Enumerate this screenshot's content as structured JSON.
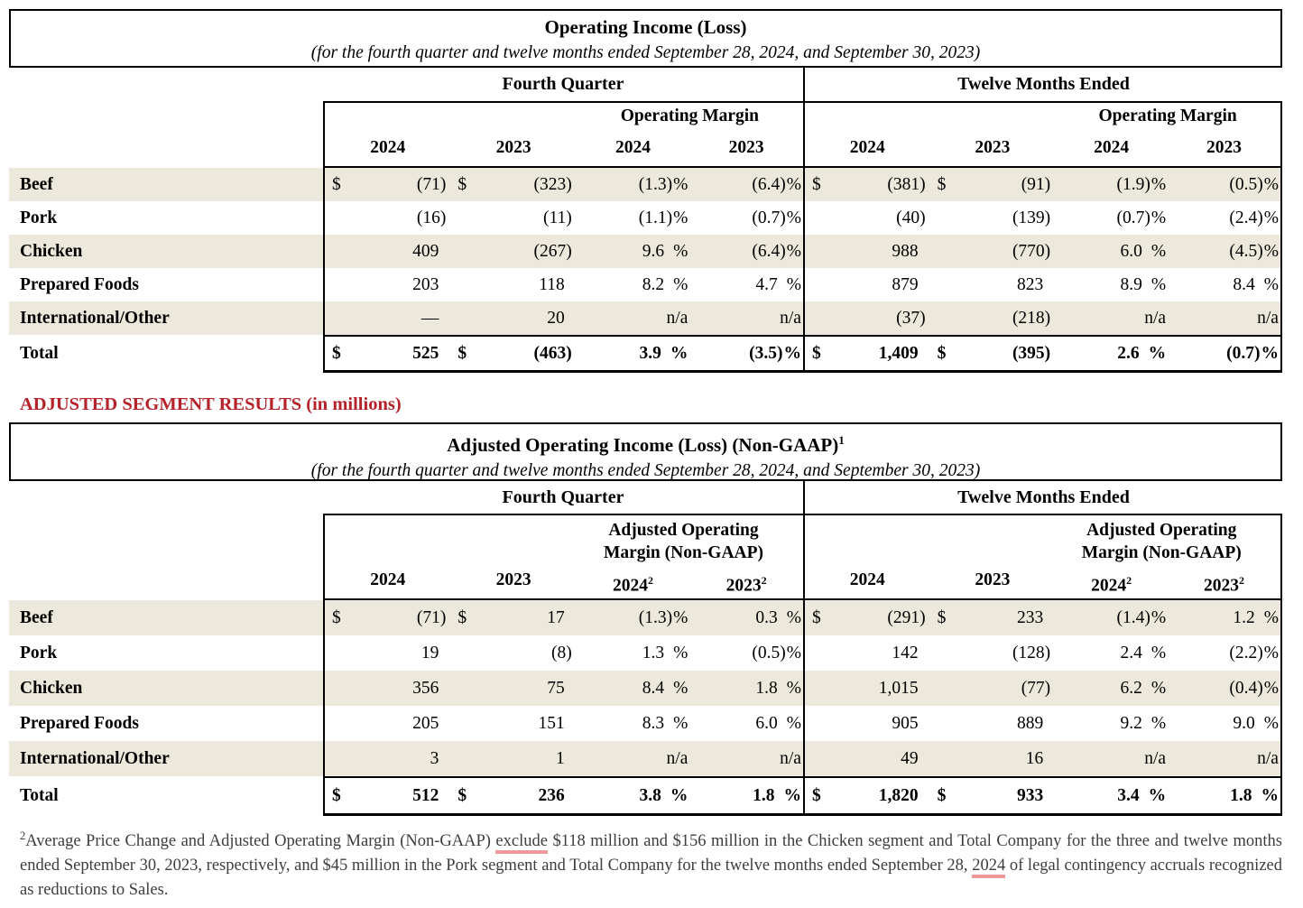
{
  "colors": {
    "stripe": "#ece8db",
    "heading_red": "#b5222a",
    "footnote_gray": "#3d3d3d",
    "underline_pink": "#ef9a9a"
  },
  "table1": {
    "title": "Operating Income (Loss)",
    "subtitle": "(for the fourth quarter and twelve months ended September 28, 2024, and September 30, 2023)",
    "period_left": "Fourth Quarter",
    "period_right": "Twelve Months Ended",
    "margin_header_left": [
      "Operating Margin"
    ],
    "margin_header_right": [
      "Operating Margin"
    ],
    "years_left": [
      {
        "y": "2024"
      },
      {
        "y": "2023"
      },
      {
        "y": "2024"
      },
      {
        "y": "2023"
      }
    ],
    "years_right": [
      {
        "y": "2024"
      },
      {
        "y": "2023"
      },
      {
        "y": "2024"
      },
      {
        "y": "2023"
      }
    ],
    "rows": [
      {
        "label": "Beef",
        "stripe": true,
        "cells": [
          {
            "d": "$",
            "v": "(71)"
          },
          {
            "d": "$",
            "v": "(323)"
          },
          {
            "v": "(1.3)",
            "p": true
          },
          {
            "v": "(6.4)",
            "p": true
          },
          {
            "d": "$",
            "v": "(381)"
          },
          {
            "d": "$",
            "v": "(91)"
          },
          {
            "v": "(1.9)",
            "p": true
          },
          {
            "v": "(0.5)",
            "p": true
          }
        ]
      },
      {
        "label": "Pork",
        "cells": [
          {
            "v": "(16)"
          },
          {
            "v": "(11)"
          },
          {
            "v": "(1.1)",
            "p": true
          },
          {
            "v": "(0.7)",
            "p": true
          },
          {
            "v": "(40)"
          },
          {
            "v": "(139)"
          },
          {
            "v": "(0.7)",
            "p": true
          },
          {
            "v": "(2.4)",
            "p": true
          }
        ]
      },
      {
        "label": "Chicken",
        "stripe": true,
        "cells": [
          {
            "v": "409"
          },
          {
            "v": "(267)"
          },
          {
            "v": "9.6",
            "p": true
          },
          {
            "v": "(6.4)",
            "p": true
          },
          {
            "v": "988"
          },
          {
            "v": "(770)"
          },
          {
            "v": "6.0",
            "p": true
          },
          {
            "v": "(4.5)",
            "p": true
          }
        ]
      },
      {
        "label": "Prepared Foods",
        "cells": [
          {
            "v": "203"
          },
          {
            "v": "118"
          },
          {
            "v": "8.2",
            "p": true
          },
          {
            "v": "4.7",
            "p": true
          },
          {
            "v": "879"
          },
          {
            "v": "823"
          },
          {
            "v": "8.9",
            "p": true
          },
          {
            "v": "8.4",
            "p": true
          }
        ]
      },
      {
        "label": "International/Other",
        "stripe": true,
        "cells": [
          {
            "v": "—"
          },
          {
            "v": "20"
          },
          {
            "v": "n/a",
            "na": true
          },
          {
            "v": "n/a",
            "na": true
          },
          {
            "v": "(37)"
          },
          {
            "v": "(218)"
          },
          {
            "v": "n/a",
            "na": true
          },
          {
            "v": "n/a",
            "na": true
          }
        ]
      },
      {
        "label": "Total",
        "total": true,
        "cells": [
          {
            "d": "$",
            "v": "525"
          },
          {
            "d": "$",
            "v": "(463)"
          },
          {
            "v": "3.9",
            "p": true
          },
          {
            "v": "(3.5)",
            "p": true
          },
          {
            "d": "$",
            "v": "1,409"
          },
          {
            "d": "$",
            "v": "(395)"
          },
          {
            "v": "2.6",
            "p": true
          },
          {
            "v": "(0.7)",
            "p": true
          }
        ]
      }
    ]
  },
  "section_heading": "ADJUSTED SEGMENT RESULTS (in millions)",
  "table2": {
    "title": "Adjusted Operating Income (Loss) (Non-GAAP)",
    "title_sup": "1",
    "subtitle": "(for the fourth quarter and twelve months ended September 28, 2024, and September 30, 2023)",
    "period_left": "Fourth Quarter",
    "period_right": "Twelve Months Ended",
    "margin_header_left": [
      "Adjusted Operating",
      "Margin (Non-GAAP)"
    ],
    "margin_header_right": [
      "Adjusted Operating",
      "Margin (Non-GAAP)"
    ],
    "years_left": [
      {
        "y": "2024"
      },
      {
        "y": "2023"
      },
      {
        "y": "2024",
        "sup": "2"
      },
      {
        "y": "2023",
        "sup": "2"
      }
    ],
    "years_right": [
      {
        "y": "2024"
      },
      {
        "y": "2023"
      },
      {
        "y": "2024",
        "sup": "2"
      },
      {
        "y": "2023",
        "sup": "2"
      }
    ],
    "rows": [
      {
        "label": "Beef",
        "stripe": true,
        "cells": [
          {
            "d": "$",
            "v": "(71)"
          },
          {
            "d": "$",
            "v": "17"
          },
          {
            "v": "(1.3)",
            "p": true
          },
          {
            "v": "0.3",
            "p": true
          },
          {
            "d": "$",
            "v": "(291)"
          },
          {
            "d": "$",
            "v": "233"
          },
          {
            "v": "(1.4)",
            "p": true
          },
          {
            "v": "1.2",
            "p": true
          }
        ]
      },
      {
        "label": "Pork",
        "cells": [
          {
            "v": "19"
          },
          {
            "v": "(8)"
          },
          {
            "v": "1.3",
            "p": true
          },
          {
            "v": "(0.5)",
            "p": true
          },
          {
            "v": "142"
          },
          {
            "v": "(128)"
          },
          {
            "v": "2.4",
            "p": true
          },
          {
            "v": "(2.2)",
            "p": true
          }
        ]
      },
      {
        "label": "Chicken",
        "stripe": true,
        "cells": [
          {
            "v": "356"
          },
          {
            "v": "75"
          },
          {
            "v": "8.4",
            "p": true
          },
          {
            "v": "1.8",
            "p": true
          },
          {
            "v": "1,015"
          },
          {
            "v": "(77)"
          },
          {
            "v": "6.2",
            "p": true
          },
          {
            "v": "(0.4)",
            "p": true
          }
        ]
      },
      {
        "label": "Prepared Foods",
        "cells": [
          {
            "v": "205"
          },
          {
            "v": "151"
          },
          {
            "v": "8.3",
            "p": true
          },
          {
            "v": "6.0",
            "p": true
          },
          {
            "v": "905"
          },
          {
            "v": "889"
          },
          {
            "v": "9.2",
            "p": true
          },
          {
            "v": "9.0",
            "p": true
          }
        ]
      },
      {
        "label": "International/Other",
        "stripe": true,
        "cells": [
          {
            "v": "3"
          },
          {
            "v": "1"
          },
          {
            "v": "n/a",
            "na": true
          },
          {
            "v": "n/a",
            "na": true
          },
          {
            "v": "49"
          },
          {
            "v": "16"
          },
          {
            "v": "n/a",
            "na": true
          },
          {
            "v": "n/a",
            "na": true
          }
        ]
      },
      {
        "label": "Total",
        "total": true,
        "cells": [
          {
            "d": "$",
            "v": "512"
          },
          {
            "d": "$",
            "v": "236"
          },
          {
            "v": "3.8",
            "p": true
          },
          {
            "v": "1.8",
            "p": true
          },
          {
            "d": "$",
            "v": "1,820"
          },
          {
            "d": "$",
            "v": "933"
          },
          {
            "v": "3.4",
            "p": true
          },
          {
            "v": "1.8",
            "p": true
          }
        ]
      }
    ]
  },
  "footnote": {
    "sup": "2",
    "segments": [
      {
        "t": "Average Price Change and Adjusted Operating Margin (Non-GAAP) "
      },
      {
        "t": "exclude",
        "u": true
      },
      {
        "t": " $118 million and $156 million in the Chicken segment and Total Company for the three and twelve months ended September 30, 2023, respectively, and $45 million in the Pork segment and Total Company for the twelve months ended September 28, "
      },
      {
        "t": "2024",
        "u": true
      },
      {
        "t": " of legal contingency accruals recognized as reductions to Sales."
      }
    ]
  }
}
